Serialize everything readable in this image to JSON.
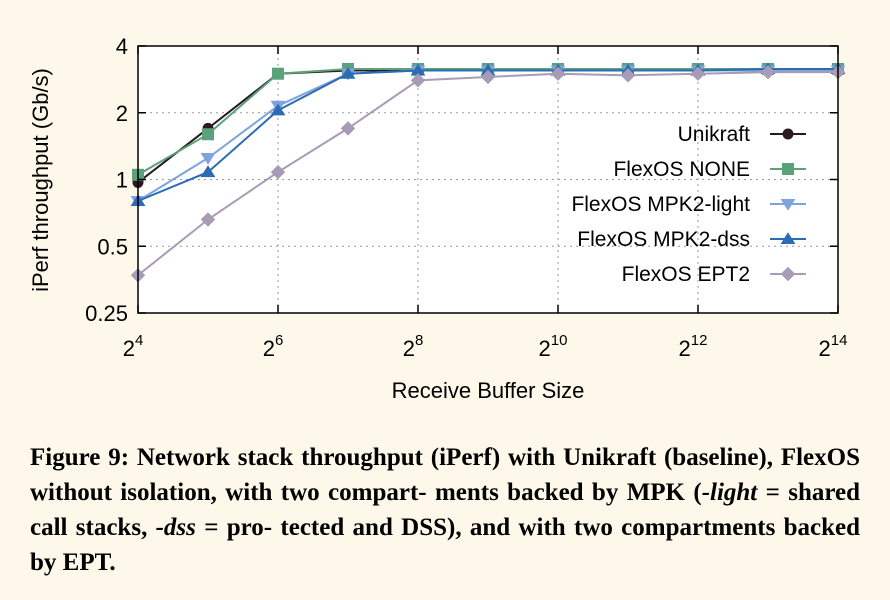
{
  "chart_data": {
    "type": "line",
    "xlabel": "Receive Buffer Size",
    "ylabel": "iPerf throughput (Gb/s)",
    "x_scale": "log2",
    "y_scale": "log2",
    "x": [
      16,
      32,
      64,
      128,
      256,
      512,
      1024,
      2048,
      4096,
      8192,
      16384
    ],
    "x_tick_values": [
      16,
      64,
      256,
      1024,
      4096,
      16384
    ],
    "x_tick_base": "2",
    "x_tick_exponents": [
      "4",
      "6",
      "8",
      "10",
      "12",
      "14"
    ],
    "y_ticks": [
      0.25,
      0.5,
      1,
      2,
      4
    ],
    "y_tick_labels": [
      "0.25",
      "0.5",
      "1",
      "2",
      "4"
    ],
    "ylim": [
      0.25,
      4
    ],
    "xlim": [
      16,
      16384
    ],
    "grid": true,
    "legend_position": "right-middle",
    "series": [
      {
        "name": "Unikraft",
        "color": "#2b1a1e",
        "marker": "circle",
        "values": [
          0.97,
          1.7,
          3.0,
          3.1,
          3.1,
          3.1,
          3.1,
          3.1,
          3.1,
          3.15,
          3.15
        ]
      },
      {
        "name": "FlexOS NONE",
        "color": "#5aa27a",
        "marker": "square",
        "values": [
          1.05,
          1.6,
          3.0,
          3.15,
          3.15,
          3.15,
          3.15,
          3.15,
          3.15,
          3.15,
          3.15
        ]
      },
      {
        "name": "FlexOS MPK2-light",
        "color": "#7ea3dd",
        "marker": "triangle-down",
        "values": [
          0.8,
          1.25,
          2.15,
          3.0,
          3.1,
          3.1,
          3.1,
          3.1,
          3.1,
          3.1,
          3.1
        ]
      },
      {
        "name": "FlexOS MPK2-dss",
        "color": "#2c6cb4",
        "marker": "triangle-up",
        "values": [
          0.8,
          1.08,
          2.05,
          3.0,
          3.1,
          3.1,
          3.1,
          3.1,
          3.1,
          3.15,
          3.15
        ]
      },
      {
        "name": "FlexOS EPT2",
        "color": "#a79bb5",
        "marker": "diamond",
        "values": [
          0.37,
          0.66,
          1.08,
          1.7,
          2.8,
          2.9,
          3.0,
          2.95,
          3.0,
          3.05,
          3.05
        ]
      }
    ]
  },
  "caption": {
    "figure_label": "Figure 9:",
    "text_1": " Network stack throughput (iPerf) with Unikraft (baseline), FlexOS without isolation, with two compart- ments backed by MPK (",
    "light": "-light",
    "text_2": " = shared call stacks, ",
    "dss": "-dss",
    "text_3": " = pro- tected and DSS), and with two compartments backed by EPT."
  }
}
